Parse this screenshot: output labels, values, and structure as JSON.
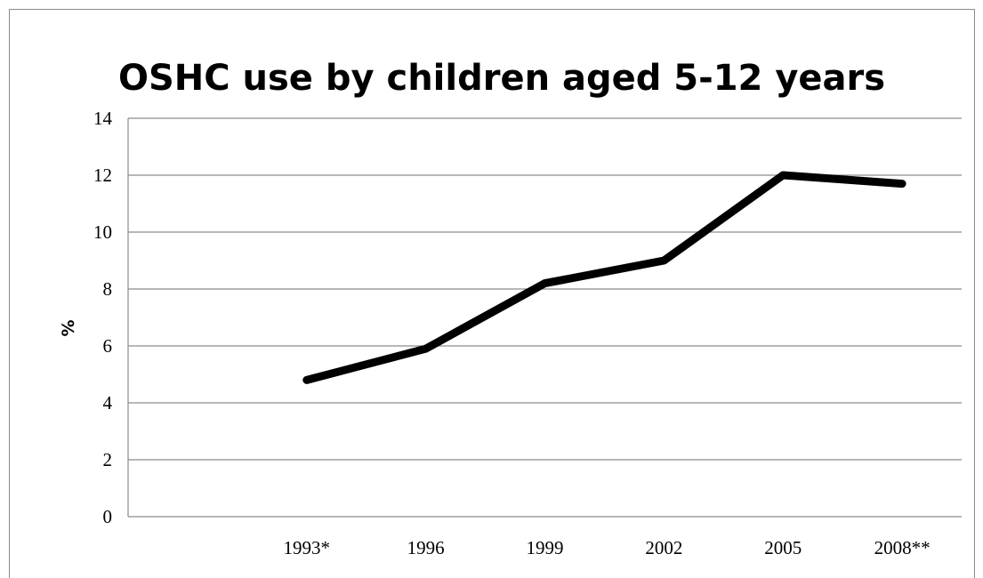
{
  "chart_data": {
    "type": "line",
    "title": "OSHC use by children aged 5-12 years",
    "xlabel": "",
    "ylabel": "%",
    "categories": [
      "",
      "1993*",
      "1996",
      "1999",
      "2002",
      "2005",
      "2008**"
    ],
    "series": [
      {
        "values": [
          null,
          4.8,
          5.9,
          8.2,
          9.0,
          12.0,
          11.7
        ],
        "color": "#000000"
      }
    ],
    "ylim": [
      0,
      14
    ],
    "yticks": [
      0,
      2,
      4,
      6,
      8,
      10,
      12,
      14
    ],
    "grid": true,
    "legend": "none"
  }
}
